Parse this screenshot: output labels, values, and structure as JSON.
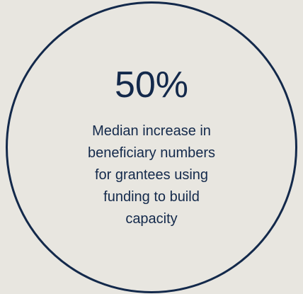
{
  "stat": {
    "value": "50%",
    "description_lines": [
      "Median increase in",
      "beneficiary numbers",
      "for grantees using",
      "funding to build",
      "capacity"
    ]
  },
  "colors": {
    "background": "#e8e6e0",
    "accent": "#13294b"
  }
}
